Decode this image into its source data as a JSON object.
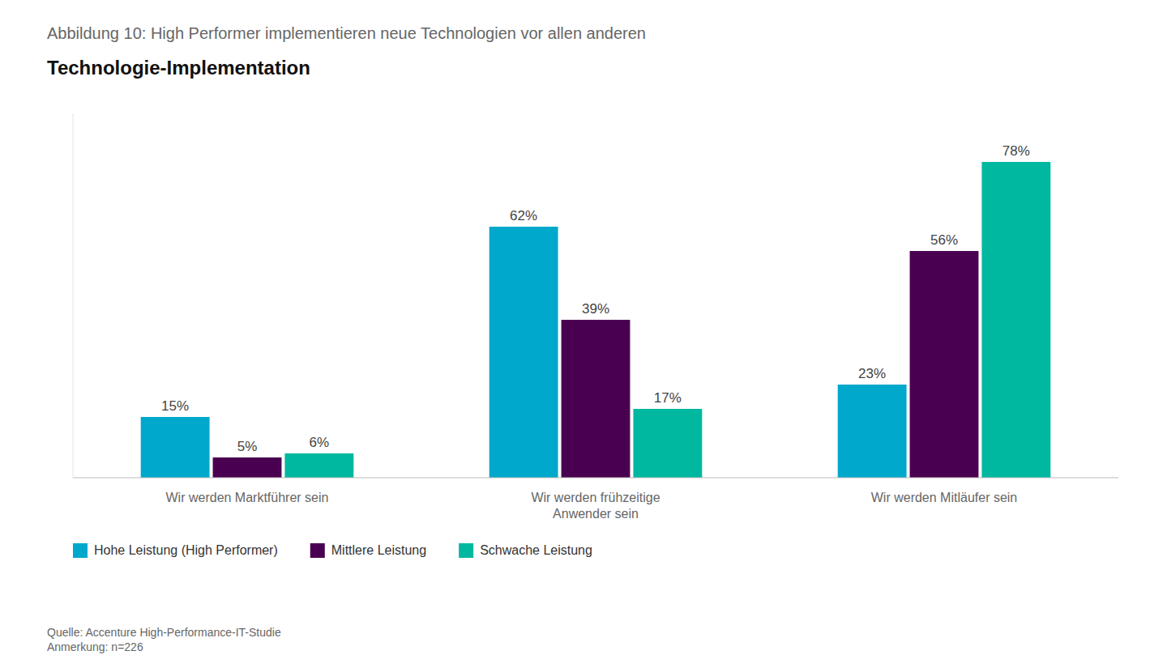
{
  "chart_data": {
    "type": "bar",
    "title": "Abbildung 10: High Performer implementieren neue Technologien vor allen anderen",
    "subtitle": "Technologie-Implementation",
    "source": "Quelle: Accenture High-Performance-IT-Studie\nAnmerkung: n=226",
    "categories": [
      "Wir werden Marktführer sein",
      "Wir werden frühzeitige\nAnwender sein",
      "Wir werden Mitläufer sein"
    ],
    "series": [
      {
        "name": "Hohe Leistung (High Performer)",
        "values": [
          15,
          62,
          23
        ],
        "value_labels": [
          "15%",
          "62%",
          "23%"
        ],
        "color": "#00A8CC"
      },
      {
        "name": "Mittlere Leistung",
        "values": [
          5,
          39,
          56
        ],
        "value_labels": [
          "5%",
          "39%",
          "56%"
        ],
        "color": "#4A0050"
      },
      {
        "name": "Schwache Leistung",
        "values": [
          6,
          17,
          78
        ],
        "value_labels": [
          "6%",
          "17%",
          "78%"
        ],
        "color": "#00B8A0"
      }
    ],
    "ylim": [
      0,
      90
    ],
    "grid": false,
    "legend": "bottom",
    "data_labels": true,
    "tick_labels": "x"
  }
}
